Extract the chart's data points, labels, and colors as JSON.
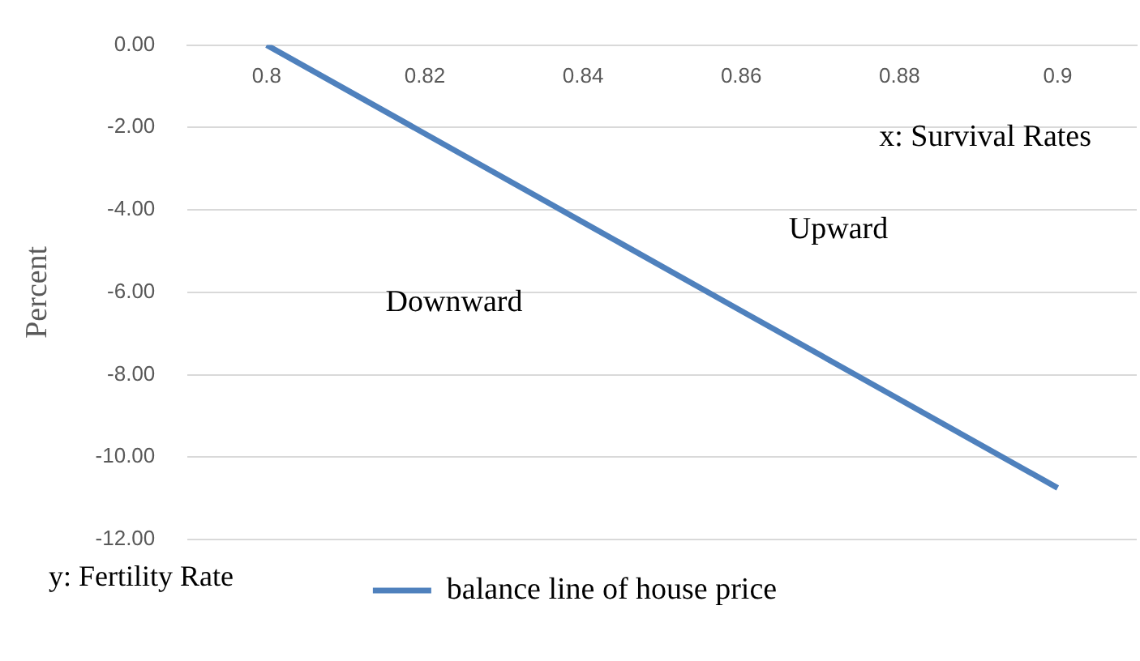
{
  "chart_data": {
    "type": "line",
    "ylabel": "Percent",
    "categories": [
      "0.8",
      "0.82",
      "0.84",
      "0.86",
      "0.88",
      "0.9"
    ],
    "series": [
      {
        "name": "balance line of house price",
        "color": "#4f81bd",
        "values": [
          0,
          -2.15,
          -4.3,
          -6.45,
          -8.6,
          -10.75
        ]
      }
    ],
    "ylim": [
      -12,
      0
    ],
    "yticks": [
      {
        "value": 0,
        "label": "0.00"
      },
      {
        "value": -2,
        "label": "-2.00"
      },
      {
        "value": -4,
        "label": "-4.00"
      },
      {
        "value": -6,
        "label": "-6.00"
      },
      {
        "value": -8,
        "label": "-8.00"
      },
      {
        "value": -10,
        "label": "-10.00"
      },
      {
        "value": -12,
        "label": "-12.00"
      }
    ],
    "grid": "y",
    "legend": "bottom",
    "marker": "none",
    "line_style": "solid",
    "annotations": [
      "x: Survival Rates",
      "Upward",
      "Downward",
      "y: Fertility Rate"
    ]
  }
}
